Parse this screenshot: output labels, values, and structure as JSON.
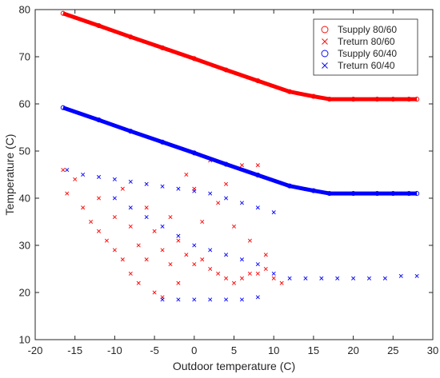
{
  "chart_data": {
    "type": "scatter",
    "xlabel": "Outdoor temperature (C)",
    "ylabel": "Temperature (C)",
    "xlim": [
      -20,
      30
    ],
    "ylim": [
      10,
      80
    ],
    "xticks": [
      -20,
      -15,
      -10,
      -5,
      0,
      5,
      10,
      15,
      20,
      25,
      30
    ],
    "yticks": [
      10,
      20,
      30,
      40,
      50,
      60,
      70,
      80
    ],
    "grid": false,
    "legend_position": "top-right",
    "series": [
      {
        "name": "Tsupply 80/60",
        "marker": "circle",
        "color": "#ff0000",
        "points": [
          [
            -16.5,
            79.2
          ],
          [
            -12,
            76.6
          ],
          [
            -8,
            74.2
          ],
          [
            -4,
            71.9
          ],
          [
            0,
            69.6
          ],
          [
            4,
            67.2
          ],
          [
            8,
            64.9
          ],
          [
            12,
            62.6
          ],
          [
            15,
            61.6
          ],
          [
            17,
            61.0
          ],
          [
            20,
            61.0
          ],
          [
            23,
            61.0
          ],
          [
            25,
            61.0
          ],
          [
            27,
            61.0
          ],
          [
            28,
            61.0
          ]
        ]
      },
      {
        "name": "Treturn 80/60",
        "marker": "x",
        "color": "#ff0000",
        "points": [
          [
            -16.5,
            46
          ],
          [
            -16,
            41
          ],
          [
            -15,
            44
          ],
          [
            -14,
            38
          ],
          [
            -13,
            35
          ],
          [
            -12,
            40
          ],
          [
            -12,
            33
          ],
          [
            -11,
            31
          ],
          [
            -10,
            36
          ],
          [
            -10,
            29
          ],
          [
            -9,
            42
          ],
          [
            -9,
            27
          ],
          [
            -8,
            34
          ],
          [
            -8,
            24
          ],
          [
            -7,
            30
          ],
          [
            -7,
            22
          ],
          [
            -6,
            38
          ],
          [
            -6,
            27
          ],
          [
            -5,
            33
          ],
          [
            -5,
            20
          ],
          [
            -4,
            29
          ],
          [
            -4,
            19
          ],
          [
            -3,
            36
          ],
          [
            -3,
            26
          ],
          [
            -2,
            31
          ],
          [
            -2,
            22
          ],
          [
            -1,
            28
          ],
          [
            -1,
            45
          ],
          [
            0,
            26
          ],
          [
            0,
            42
          ],
          [
            1,
            27
          ],
          [
            1,
            35
          ],
          [
            2,
            25
          ],
          [
            2,
            48
          ],
          [
            3,
            24
          ],
          [
            3,
            39
          ],
          [
            4,
            23
          ],
          [
            4,
            43
          ],
          [
            5,
            22
          ],
          [
            5,
            34
          ],
          [
            6,
            23
          ],
          [
            6,
            47
          ],
          [
            7,
            24
          ],
          [
            7,
            31
          ],
          [
            8,
            24
          ],
          [
            8,
            47
          ],
          [
            9,
            25
          ],
          [
            9,
            28
          ],
          [
            10,
            23
          ],
          [
            11,
            22
          ]
        ]
      },
      {
        "name": "Tsupply 60/40",
        "marker": "circle",
        "color": "#0000ff",
        "points": [
          [
            -16.5,
            59.2
          ],
          [
            -12,
            56.6
          ],
          [
            -8,
            54.2
          ],
          [
            -4,
            51.9
          ],
          [
            0,
            49.6
          ],
          [
            4,
            47.2
          ],
          [
            8,
            44.9
          ],
          [
            12,
            42.6
          ],
          [
            15,
            41.6
          ],
          [
            17,
            41.0
          ],
          [
            20,
            41.0
          ],
          [
            23,
            41.0
          ],
          [
            25,
            41.0
          ],
          [
            27,
            41.0
          ],
          [
            28,
            41.0
          ]
        ]
      },
      {
        "name": "Treturn 60/40",
        "marker": "x",
        "color": "#0000ff",
        "points": [
          [
            -16,
            46
          ],
          [
            -14,
            45
          ],
          [
            -12,
            44.5
          ],
          [
            -10,
            44
          ],
          [
            -8,
            43.5
          ],
          [
            -6,
            43
          ],
          [
            -4,
            42.5
          ],
          [
            -2,
            42
          ],
          [
            0,
            41.5
          ],
          [
            2,
            41
          ],
          [
            4,
            40
          ],
          [
            6,
            39
          ],
          [
            8,
            38
          ],
          [
            10,
            37
          ],
          [
            -10,
            40
          ],
          [
            -8,
            38
          ],
          [
            -6,
            36
          ],
          [
            -4,
            34
          ],
          [
            -2,
            32
          ],
          [
            0,
            30
          ],
          [
            2,
            29
          ],
          [
            4,
            28
          ],
          [
            6,
            27
          ],
          [
            8,
            26
          ],
          [
            10,
            24
          ],
          [
            12,
            23
          ],
          [
            14,
            23
          ],
          [
            16,
            23
          ],
          [
            18,
            23
          ],
          [
            20,
            23
          ],
          [
            22,
            23
          ],
          [
            24,
            23
          ],
          [
            26,
            23.5
          ],
          [
            28,
            23.5
          ],
          [
            -4,
            18.5
          ],
          [
            -2,
            18.5
          ],
          [
            0,
            18.5
          ],
          [
            2,
            18.5
          ],
          [
            4,
            18.5
          ],
          [
            6,
            18.5
          ],
          [
            8,
            19
          ]
        ]
      }
    ]
  }
}
